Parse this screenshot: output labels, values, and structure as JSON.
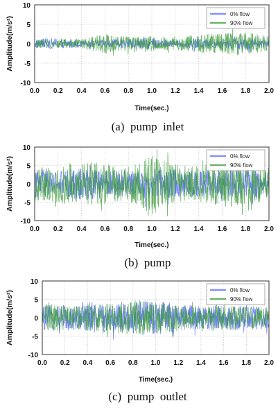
{
  "panels": [
    {
      "caption": "(a)  pump  inlet",
      "chart_data": {
        "type": "line",
        "xlabel": "Time(sec.)",
        "ylabel": "Amplitude(m/s²)",
        "xlim": [
          0.0,
          2.0
        ],
        "ylim": [
          -10,
          10
        ],
        "xticks": [
          "0.0",
          "0.2",
          "0.4",
          "0.6",
          "0.8",
          "1.0",
          "1.2",
          "1.4",
          "1.6",
          "1.8",
          "2.0"
        ],
        "yticks": [
          "10",
          "5",
          "0",
          "-5",
          "-10"
        ],
        "grid": true,
        "legend_position": "top-right",
        "series": [
          {
            "name": "0% flow",
            "color": "#5b6cff",
            "envelope": [
              -1.2,
              1.4,
              -0.8,
              1.0,
              1.2,
              -1.5,
              0.8,
              1.3,
              -1.1,
              1.6,
              0.9
            ]
          },
          {
            "name": "90% flow",
            "color": "#3a9a3a",
            "envelope": [
              -1.0,
              1.2,
              -1.3,
              2.6,
              1.8,
              -2.0,
              1.5,
              2.4,
              -2.8,
              2.9,
              2.2
            ]
          }
        ]
      }
    },
    {
      "caption": "(b)  pump",
      "chart_data": {
        "type": "line",
        "xlabel": "Time(sec.)",
        "ylabel": "Amplitude(m/s²)",
        "xlim": [
          0.0,
          2.0
        ],
        "ylim": [
          -10,
          10
        ],
        "xticks": [
          "0.0",
          "0.2",
          "0.4",
          "0.6",
          "0.8",
          "1.0",
          "1.2",
          "1.4",
          "1.6",
          "1.8",
          "2.0"
        ],
        "yticks": [
          "10",
          "5",
          "0",
          "-5",
          "-10"
        ],
        "grid": true,
        "legend_position": "top-right",
        "series": [
          {
            "name": "0% flow",
            "color": "#5b6cff",
            "envelope": [
              -4.0,
              3.5,
              -4.5,
              3.8,
              3.6,
              -4.2,
              3.9,
              3.4,
              -3.8,
              4.0,
              3.6
            ]
          },
          {
            "name": "90% flow",
            "color": "#3a9a3a",
            "envelope": [
              -4.5,
              5.2,
              -6.0,
              5.8,
              4.8,
              -8.5,
              5.2,
              4.9,
              -6.5,
              5.5,
              4.7
            ]
          }
        ]
      }
    },
    {
      "caption": "(c)  pump  outlet",
      "chart_data": {
        "type": "line",
        "xlabel": "Time(sec.)",
        "ylabel": "Amplitude(m/s²)",
        "xlim": [
          0.0,
          2.0
        ],
        "ylim": [
          -10,
          10
        ],
        "xticks": [
          "0.0",
          "0.2",
          "0.4",
          "0.6",
          "0.8",
          "1.0",
          "1.2",
          "1.4",
          "1.6",
          "1.8",
          "2.0"
        ],
        "yticks": [
          "10",
          "5",
          "0",
          "-5",
          "-10"
        ],
        "grid": true,
        "legend_position": "top-right",
        "series": [
          {
            "name": "0% flow",
            "color": "#5b6cff",
            "envelope": [
              -3.5,
              3.2,
              -3.8,
              3.6,
              4.5,
              -4.8,
              3.8,
              3.2,
              -3.5,
              3.4,
              3.0
            ]
          },
          {
            "name": "90% flow",
            "color": "#3a9a3a",
            "envelope": [
              -4.0,
              3.4,
              -3.6,
              4.0,
              5.2,
              -4.5,
              3.6,
              3.0,
              -3.4,
              3.2,
              2.8
            ]
          }
        ]
      }
    }
  ]
}
